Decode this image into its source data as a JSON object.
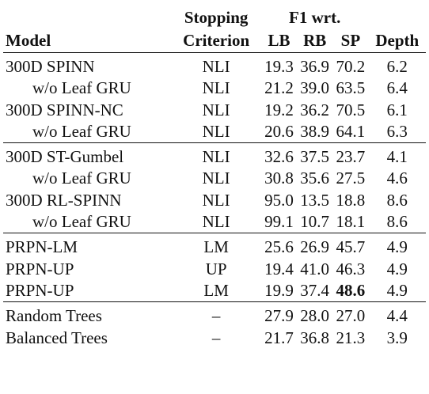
{
  "header": {
    "stopping_line1": "Stopping",
    "stopping_line2": "Criterion",
    "f1_group": "F1 wrt.",
    "model": "Model",
    "lb": "LB",
    "rb": "RB",
    "sp": "SP",
    "depth": "Depth"
  },
  "rows": [
    {
      "model": "300D SPINN",
      "stop": "NLI",
      "lb": "19.3",
      "rb": "36.9",
      "sp": "70.2",
      "depth": "6.2"
    },
    {
      "model": "w/o Leaf GRU",
      "stop": "NLI",
      "lb": "21.2",
      "rb": "39.0",
      "sp": "63.5",
      "depth": "6.4"
    },
    {
      "model": "300D SPINN-NC",
      "stop": "NLI",
      "lb": "19.2",
      "rb": "36.2",
      "sp": "70.5",
      "depth": "6.1"
    },
    {
      "model": "w/o Leaf GRU",
      "stop": "NLI",
      "lb": "20.6",
      "rb": "38.9",
      "sp": "64.1",
      "depth": "6.3"
    },
    {
      "model": "300D ST-Gumbel",
      "stop": "NLI",
      "lb": "32.6",
      "rb": "37.5",
      "sp": "23.7",
      "depth": "4.1"
    },
    {
      "model": "w/o Leaf GRU",
      "stop": "NLI",
      "lb": "30.8",
      "rb": "35.6",
      "sp": "27.5",
      "depth": "4.6"
    },
    {
      "model": "300D RL-SPINN",
      "stop": "NLI",
      "lb": "95.0",
      "rb": "13.5",
      "sp": "18.8",
      "depth": "8.6"
    },
    {
      "model": "w/o Leaf GRU",
      "stop": "NLI",
      "lb": "99.1",
      "rb": "10.7",
      "sp": "18.1",
      "depth": "8.6"
    },
    {
      "model": "PRPN-LM",
      "stop": "LM",
      "lb": "25.6",
      "rb": "26.9",
      "sp": "45.7",
      "depth": "4.9"
    },
    {
      "model": "PRPN-UP",
      "stop": "UP",
      "lb": "19.4",
      "rb": "41.0",
      "sp": "46.3",
      "depth": "4.9"
    },
    {
      "model": "PRPN-UP",
      "stop": "LM",
      "lb": "19.9",
      "rb": "37.4",
      "sp": "48.6",
      "depth": "4.9"
    },
    {
      "model": "Random Trees",
      "stop": "–",
      "lb": "27.9",
      "rb": "28.0",
      "sp": "27.0",
      "depth": "4.4"
    },
    {
      "model": "Balanced Trees",
      "stop": "–",
      "lb": "21.7",
      "rb": "36.8",
      "sp": "21.3",
      "depth": "3.9"
    }
  ]
}
